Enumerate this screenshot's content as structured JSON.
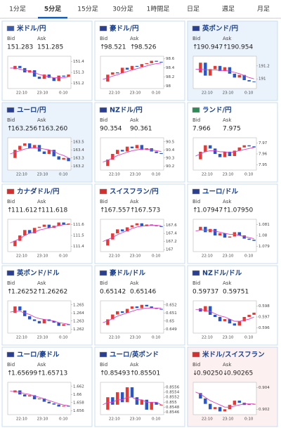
{
  "tabs": [
    "1分足",
    "5分足",
    "15分足",
    "30分足",
    "1時間足",
    "日足",
    "週足",
    "月足"
  ],
  "active_tab": 1,
  "labels": {
    "bid": "Bid",
    "ask": "Ask"
  },
  "xticks": [
    "22:10",
    "23:10",
    "0:10"
  ],
  "tiles": [
    {
      "name": "米ドル/円",
      "flag": "#3c5aa6",
      "bg": "#ffffff",
      "direction": null,
      "bid": "151.283",
      "ask": "151.285",
      "ylim": [
        151.15,
        151.45
      ],
      "yticks": [
        151.4,
        151.3,
        151.2
      ],
      "closes": [
        151.33,
        151.36,
        151.34,
        151.3,
        151.32,
        151.26,
        151.24,
        151.28,
        151.25,
        151.22,
        151.27,
        151.26,
        151.28
      ],
      "ma": [
        151.34,
        151.34,
        151.33,
        151.32,
        151.31,
        151.3,
        151.28,
        151.27,
        151.26,
        151.25,
        151.25,
        151.25,
        151.26
      ]
    },
    {
      "name": "豪ドル/円",
      "flag": "#2a3f8f",
      "bg": "#ffffff",
      "direction": "up",
      "bid": "98.521",
      "ask": "98.526",
      "ylim": [
        97.95,
        98.65
      ],
      "yticks": [
        98.6,
        98.4,
        98.2,
        98.0
      ],
      "closes": [
        98.1,
        98.25,
        98.3,
        98.28,
        98.4,
        98.36,
        98.44,
        98.42,
        98.48,
        98.5,
        98.55,
        98.53,
        98.52
      ],
      "ma": [
        98.15,
        98.18,
        98.22,
        98.25,
        98.29,
        98.32,
        98.35,
        98.38,
        98.41,
        98.44,
        98.47,
        98.49,
        98.5
      ]
    },
    {
      "name": "英ポンド/円",
      "flag": "#2a3f8f",
      "bg": "#eaf3fc",
      "direction": "up",
      "bid": "190.947",
      "ask": "190.954",
      "ylim": [
        190.85,
        191.35
      ],
      "yticks": [
        191.2,
        191
      ],
      "closes": [
        191.1,
        191.25,
        191.05,
        191.15,
        191.2,
        191.12,
        191.18,
        191.08,
        191.02,
        191.06,
        190.98,
        190.96,
        190.95
      ],
      "ma": [
        191.15,
        191.15,
        191.14,
        191.14,
        191.14,
        191.13,
        191.13,
        191.12,
        191.1,
        191.08,
        191.05,
        191.02,
        191.0
      ]
    },
    {
      "name": "ユーロ/円",
      "flag": "#2a3f8f",
      "bg": "#eaf3fc",
      "direction": "up",
      "bid": "163.256",
      "ask": "163.260",
      "ylim": [
        163.15,
        163.55
      ],
      "yticks": [
        163.5,
        163.4,
        163.3,
        163.2
      ],
      "closes": [
        163.3,
        163.4,
        163.45,
        163.48,
        163.42,
        163.46,
        163.38,
        163.35,
        163.4,
        163.32,
        163.28,
        163.3,
        163.26
      ],
      "ma": [
        163.35,
        163.37,
        163.39,
        163.41,
        163.42,
        163.43,
        163.42,
        163.41,
        163.4,
        163.38,
        163.35,
        163.33,
        163.3
      ]
    },
    {
      "name": "NZドル/円",
      "flag": "#2a3f8f",
      "bg": "#ffffff",
      "direction": null,
      "bid": "90.354",
      "ask": "90.361",
      "ylim": [
        90.15,
        90.55
      ],
      "yticks": [
        90.5,
        90.4,
        90.3,
        90.2
      ],
      "closes": [
        90.2,
        90.28,
        90.35,
        90.4,
        90.38,
        90.44,
        90.42,
        90.46,
        90.4,
        90.42,
        90.38,
        90.36,
        90.35
      ],
      "ma": [
        90.25,
        90.27,
        90.3,
        90.33,
        90.35,
        90.37,
        90.39,
        90.4,
        90.41,
        90.41,
        90.4,
        90.39,
        90.38
      ]
    },
    {
      "name": "ランド/円",
      "flag": "#2e8b57",
      "bg": "#ffffff",
      "direction": null,
      "bid": "7.966",
      "ask": "7.975",
      "ylim": [
        7.945,
        7.975
      ],
      "yticks": [
        7.97,
        7.96,
        7.95
      ],
      "closes": [
        7.955,
        7.962,
        7.968,
        7.965,
        7.96,
        7.957,
        7.962,
        7.958,
        7.963,
        7.966,
        7.968,
        7.967,
        7.966
      ],
      "ma": [
        7.958,
        7.96,
        7.962,
        7.963,
        7.963,
        7.962,
        7.962,
        7.961,
        7.962,
        7.963,
        7.964,
        7.965,
        7.966
      ]
    },
    {
      "name": "カナダドル/円",
      "flag": "#d32f2f",
      "bg": "#ffffff",
      "direction": "up",
      "bid": "111.612",
      "ask": "111.618",
      "ylim": [
        111.35,
        111.65
      ],
      "yticks": [
        111.6,
        111.5,
        111.4
      ],
      "closes": [
        111.4,
        111.45,
        111.5,
        111.55,
        111.52,
        111.57,
        111.58,
        111.6,
        111.57,
        111.59,
        111.62,
        111.6,
        111.61
      ],
      "ma": [
        111.43,
        111.45,
        111.47,
        111.5,
        111.52,
        111.53,
        111.55,
        111.56,
        111.57,
        111.58,
        111.59,
        111.6,
        111.6
      ]
    },
    {
      "name": "スイスフラン/円",
      "flag": "#d32f2f",
      "bg": "#ffffff",
      "direction": "up",
      "bid": "167.557",
      "ask": "167.573",
      "ylim": [
        166.95,
        167.75
      ],
      "yticks": [
        167.6,
        167.4,
        167.2,
        167
      ],
      "closes": [
        167.1,
        167.25,
        167.4,
        167.5,
        167.45,
        167.55,
        167.6,
        167.65,
        167.58,
        167.62,
        167.6,
        167.58,
        167.56
      ],
      "ma": [
        167.2,
        167.25,
        167.3,
        167.37,
        167.42,
        167.47,
        167.52,
        167.56,
        167.58,
        167.59,
        167.6,
        167.6,
        167.59
      ]
    },
    {
      "name": "ユーロ/ドル",
      "flag": "#2a3f8f",
      "bg": "#ffffff",
      "direction": "up",
      "bid": "1.07947",
      "ask": "1.07950",
      "ylim": [
        1.0785,
        1.0815
      ],
      "yticks": [
        1.081,
        1.08,
        1.079
      ],
      "closes": [
        1.0805,
        1.0808,
        1.0803,
        1.0806,
        1.08,
        1.0802,
        1.0798,
        1.0799,
        1.0803,
        1.08,
        1.0797,
        1.0796,
        1.0795
      ],
      "ma": [
        1.0804,
        1.0805,
        1.0805,
        1.0805,
        1.0804,
        1.0803,
        1.0802,
        1.0801,
        1.0801,
        1.08,
        1.0799,
        1.0798,
        1.0797
      ]
    },
    {
      "name": "英ポンド/ドル",
      "flag": "#2a3f8f",
      "bg": "#ffffff",
      "direction": "up",
      "bid": "1.26252",
      "ask": "1.26262",
      "ylim": [
        1.2615,
        1.2655
      ],
      "yticks": [
        1.265,
        1.264,
        1.263,
        1.262
      ],
      "closes": [
        1.264,
        1.2648,
        1.2643,
        1.2636,
        1.2632,
        1.263,
        1.2627,
        1.2632,
        1.263,
        1.2628,
        1.2624,
        1.2626,
        1.2625
      ],
      "ma": [
        1.2641,
        1.2642,
        1.2642,
        1.264,
        1.2638,
        1.2635,
        1.2633,
        1.2632,
        1.2631,
        1.263,
        1.2628,
        1.2627,
        1.2626
      ]
    },
    {
      "name": "豪ドル/ドル",
      "flag": "#2a3f8f",
      "bg": "#ffffff",
      "direction": null,
      "bid": "0.65142",
      "ask": "0.65146",
      "ylim": [
        0.6485,
        0.6525
      ],
      "yticks": [
        0.652,
        0.651,
        0.65,
        0.649
      ],
      "closes": [
        0.6495,
        0.6502,
        0.6508,
        0.6512,
        0.651,
        0.6515,
        0.6518,
        0.6516,
        0.652,
        0.6518,
        0.6516,
        0.6515,
        0.6514
      ],
      "ma": [
        0.6498,
        0.65,
        0.6503,
        0.6506,
        0.6508,
        0.651,
        0.6512,
        0.6514,
        0.6515,
        0.6516,
        0.6516,
        0.6516,
        0.6516
      ]
    },
    {
      "name": "NZドル/ドル",
      "flag": "#2a3f8f",
      "bg": "#ffffff",
      "direction": null,
      "bid": "0.59737",
      "ask": "0.59751",
      "ylim": [
        0.5955,
        0.5985
      ],
      "yticks": [
        0.598,
        0.597,
        0.596
      ],
      "closes": [
        0.5978,
        0.5975,
        0.598,
        0.5972,
        0.597,
        0.5966,
        0.5968,
        0.5964,
        0.5962,
        0.5966,
        0.597,
        0.5972,
        0.5974
      ],
      "ma": [
        0.5977,
        0.5977,
        0.5976,
        0.5975,
        0.5973,
        0.5971,
        0.597,
        0.5968,
        0.5966,
        0.5966,
        0.5967,
        0.5968,
        0.597
      ]
    },
    {
      "name": "ユーロ/豪ドル",
      "flag": "#2a3f8f",
      "bg": "#ffffff",
      "direction": "up",
      "bid": "1.65699",
      "ask": "1.65713",
      "ylim": [
        1.655,
        1.663
      ],
      "yticks": [
        1.662,
        1.66,
        1.658,
        1.656
      ],
      "closes": [
        1.6605,
        1.661,
        1.66,
        1.6595,
        1.6598,
        1.6588,
        1.659,
        1.6582,
        1.6578,
        1.6575,
        1.657,
        1.6572,
        1.657
      ],
      "ma": [
        1.6608,
        1.6607,
        1.6605,
        1.6602,
        1.66,
        1.6596,
        1.6593,
        1.6589,
        1.6585,
        1.6581,
        1.6577,
        1.6574,
        1.6572
      ]
    },
    {
      "name": "ユーロ/英ポンド",
      "flag": "#2a3f8f",
      "bg": "#ffffff",
      "direction": "up",
      "bid": "0.85493",
      "ask": "0.85501",
      "ylim": [
        0.8545,
        0.8558
      ],
      "yticks": [
        0.8556,
        0.8554,
        0.8552,
        0.855,
        0.8548,
        0.8546
      ],
      "closes": [
        0.8547,
        0.8552,
        0.8549,
        0.8554,
        0.855,
        0.8556,
        0.8552,
        0.8549,
        0.8551,
        0.8547,
        0.855,
        0.8549,
        0.8549
      ],
      "ma": [
        0.8549,
        0.855,
        0.855,
        0.8551,
        0.8551,
        0.8552,
        0.8552,
        0.8551,
        0.8551,
        0.855,
        0.855,
        0.855,
        0.8549
      ]
    },
    {
      "name": "米ドル/スイスフラン",
      "flag": "#d32f2f",
      "bg": "#fdf0f0",
      "direction": "down",
      "bid": "0.90250",
      "ask": "0.90265",
      "ylim": [
        0.9015,
        0.9045
      ],
      "yticks": [
        0.904,
        0.902
      ],
      "closes": [
        0.9035,
        0.903,
        0.9025,
        0.902,
        0.9022,
        0.9018,
        0.902,
        0.9024,
        0.9028,
        0.9026,
        0.9024,
        0.9025,
        0.9025
      ],
      "ma": [
        0.9036,
        0.9034,
        0.9031,
        0.9028,
        0.9026,
        0.9024,
        0.9022,
        0.9022,
        0.9023,
        0.9024,
        0.9025,
        0.9025,
        0.9025
      ]
    }
  ]
}
